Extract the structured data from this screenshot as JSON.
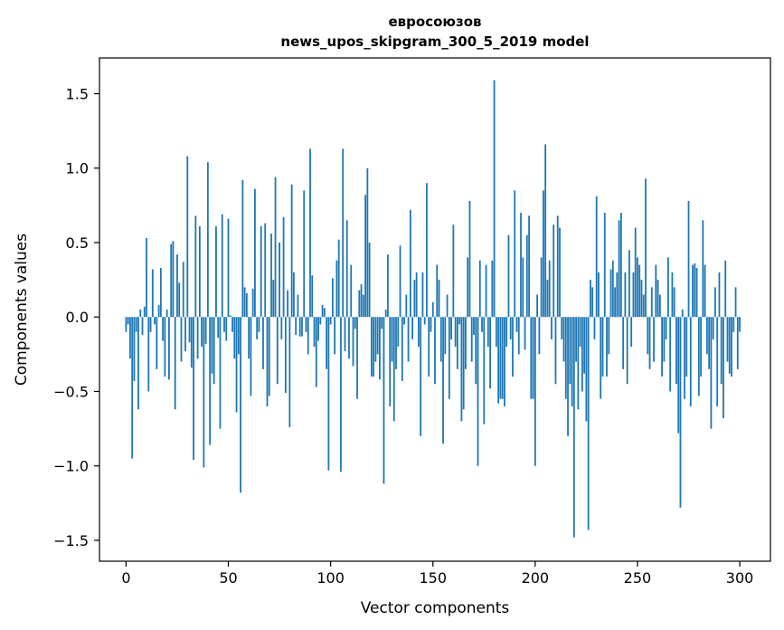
{
  "chart_data": {
    "type": "bar",
    "title_line1": "евросоюзов",
    "title_line2": "news_upos_skipgram_300_5_2019 model",
    "xlabel": "Vector components",
    "ylabel": "Components values",
    "xlim": [
      -13,
      315
    ],
    "ylim": [
      -1.64,
      1.74
    ],
    "xticks": [
      0,
      50,
      100,
      150,
      200,
      250,
      300
    ],
    "yticks": [
      -1.5,
      -1.0,
      -0.5,
      0.0,
      0.5,
      1.0,
      1.5
    ],
    "ytick_labels": [
      "−1.5",
      "−1.0",
      "−0.5",
      "0.0",
      "0.5",
      "1.0",
      "1.5"
    ],
    "bar_color": "#1f77b4",
    "series": [
      {
        "name": "евросоюзов",
        "values": [
          -0.1,
          -0.05,
          -0.28,
          -0.95,
          -0.43,
          -0.1,
          -0.62,
          0.05,
          -0.12,
          0.07,
          0.53,
          -0.5,
          -0.1,
          0.32,
          -0.05,
          -0.35,
          0.08,
          0.33,
          -0.16,
          -0.4,
          0.05,
          -0.42,
          0.49,
          0.51,
          -0.62,
          0.42,
          0.23,
          -0.3,
          0.37,
          -0.23,
          1.08,
          -0.17,
          -0.34,
          -0.96,
          0.68,
          -0.28,
          0.61,
          -0.2,
          -1.01,
          -0.18,
          1.04,
          -0.86,
          -0.38,
          -0.45,
          0.61,
          -0.14,
          -0.75,
          0.69,
          -0.1,
          -0.16,
          0.66,
          0.01,
          -0.1,
          -0.28,
          -0.64,
          -0.25,
          -1.18,
          0.92,
          0.2,
          0.16,
          -0.28,
          -0.53,
          0.19,
          0.86,
          -0.15,
          -0.1,
          0.61,
          -0.35,
          0.63,
          -0.6,
          -0.53,
          0.56,
          0.25,
          0.94,
          -0.45,
          0.5,
          -0.15,
          0.67,
          -0.51,
          0.18,
          -0.74,
          0.89,
          0.3,
          -0.12,
          0.15,
          -0.13,
          -0.13,
          0.85,
          -0.1,
          -0.25,
          1.13,
          0.28,
          -0.2,
          -0.47,
          -0.16,
          -0.05,
          0.08,
          0.06,
          -0.35,
          -1.03,
          -0.05,
          0.26,
          -0.25,
          0.38,
          0.52,
          -1.04,
          1.13,
          -0.23,
          0.65,
          -0.28,
          0.35,
          -0.33,
          -0.08,
          -0.55,
          0.18,
          0.22,
          0.15,
          0.82,
          1.0,
          0.5,
          -0.4,
          -0.4,
          -0.3,
          -0.25,
          -0.42,
          -0.08,
          -1.12,
          0.05,
          0.42,
          -0.6,
          -0.3,
          -0.7,
          -0.35,
          -0.2,
          0.48,
          -0.43,
          -0.05,
          0.15,
          -0.3,
          0.72,
          -0.15,
          0.25,
          0.3,
          -0.2,
          -0.8,
          0.3,
          -0.05,
          0.9,
          -0.4,
          -0.1,
          0.1,
          -0.45,
          0.35,
          0.25,
          -0.3,
          -0.85,
          -0.25,
          0.15,
          -0.55,
          -0.15,
          0.62,
          -0.2,
          -0.35,
          -0.05,
          -0.7,
          -0.62,
          -0.35,
          0.4,
          0.78,
          -0.3,
          -0.12,
          -0.45,
          -1.0,
          0.38,
          -0.1,
          -0.72,
          0.35,
          -0.2,
          -0.48,
          0.38,
          1.59,
          -0.2,
          -0.58,
          -0.55,
          -0.55,
          -0.6,
          -0.2,
          0.55,
          -0.15,
          -0.4,
          0.85,
          -0.1,
          -0.25,
          0.7,
          0.4,
          -0.22,
          0.55,
          0.68,
          -0.55,
          -0.55,
          -1.0,
          0.15,
          -0.25,
          0.4,
          0.85,
          1.16,
          0.25,
          0.38,
          -0.15,
          0.62,
          -0.45,
          0.68,
          0.6,
          -0.15,
          -0.3,
          -0.55,
          -0.8,
          -0.45,
          -0.6,
          -1.48,
          -0.3,
          -0.62,
          -0.2,
          -0.5,
          -0.38,
          -0.7,
          -1.43,
          0.25,
          0.2,
          -0.15,
          0.81,
          0.3,
          -0.55,
          -0.4,
          0.7,
          -0.4,
          -0.25,
          0.32,
          0.38,
          0.2,
          0.3,
          0.65,
          0.7,
          -0.35,
          0.3,
          -0.45,
          0.45,
          -0.2,
          0.3,
          0.6,
          0.4,
          0.35,
          0.25,
          0.15,
          0.93,
          -0.25,
          -0.35,
          0.2,
          -0.3,
          0.35,
          0.25,
          0.15,
          -0.4,
          -0.3,
          -0.15,
          0.4,
          -0.5,
          0.3,
          0.2,
          -0.45,
          -0.78,
          -1.28,
          0.05,
          -0.55,
          -0.4,
          0.78,
          -0.6,
          0.35,
          0.36,
          0.33,
          -0.53,
          -0.4,
          0.65,
          0.35,
          -0.25,
          -0.35,
          -0.75,
          -0.15,
          0.2,
          -0.6,
          0.3,
          -0.45,
          -0.68,
          0.38,
          -0.3,
          -0.38,
          -0.4,
          -0.1,
          0.2,
          -0.35,
          -0.1
        ]
      }
    ]
  }
}
